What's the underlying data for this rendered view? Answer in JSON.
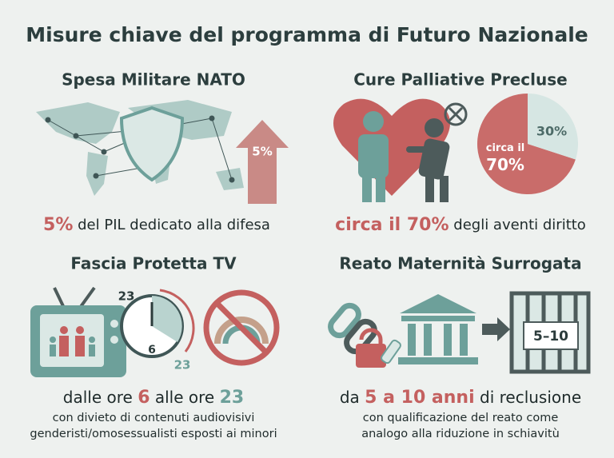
{
  "title": "Misure chiave del programma di Futuro Nazionale",
  "panels": [
    {
      "title": "Spesa Militare NATO",
      "badge": "5%",
      "caption": {
        "highlight": "5%",
        "text": " del PIL dedicato alla difesa"
      }
    },
    {
      "title": "Cure Palliative Precluse",
      "pie": {
        "values": [
          70,
          30
        ],
        "value_labels": [
          "circa il 70%",
          "30%"
        ]
      },
      "caption": {
        "highlight": "circa il 70%",
        "text": " degli aventi diritto"
      }
    },
    {
      "title": "Fascia Protetta TV",
      "clock_labels": [
        "23",
        "6",
        "23"
      ],
      "caption": {
        "prefix": "dalle ore ",
        "start": "6",
        "middle": " alle ore ",
        "end": "23",
        "lines": [
          "con divieto di contenuti audiovisivi",
          "genderisti/omosessualisti esposti ai minori"
        ]
      }
    },
    {
      "title": "Reato Maternità Surrogata",
      "badge": "5–10",
      "caption": {
        "prefix": "da ",
        "highlight": "5 a 10 anni",
        "text": " di reclusione",
        "lines": [
          "con qualificazione del reato come",
          "analogo alla riduzione in schiavitù"
        ]
      }
    }
  ]
}
